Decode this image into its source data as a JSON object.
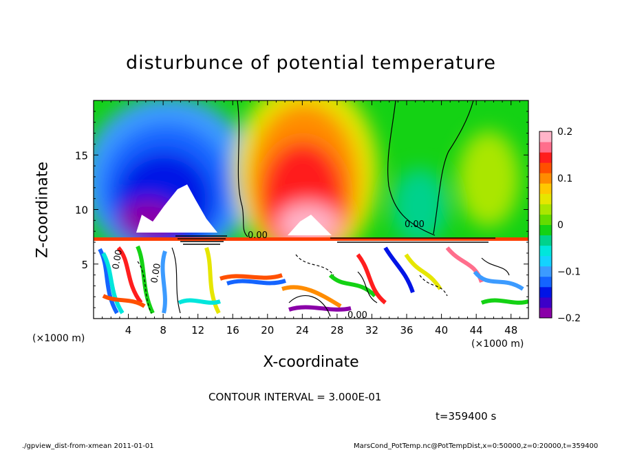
{
  "chart_data": {
    "type": "heatmap",
    "title": "disturbunce of potential temperature",
    "xlabel": "X-coordinate",
    "ylabel": "Z-coordinate",
    "x_unit_label": "(×1000 m)",
    "y_unit_label": "(×1000 m)",
    "xlim": [
      0,
      50
    ],
    "ylim": [
      0,
      20
    ],
    "x_ticks": [
      4,
      8,
      12,
      16,
      20,
      24,
      28,
      32,
      36,
      40,
      44,
      48
    ],
    "y_ticks": [
      5,
      10,
      15
    ],
    "colorbar": {
      "range": [
        -0.2,
        0.2
      ],
      "tick_values": [
        0.2,
        0.1,
        0,
        -0.1,
        -0.2
      ],
      "tick_labels": [
        "0.2",
        "0.1",
        "0",
        "−0.1",
        "−0.2"
      ],
      "colors": [
        "#8a00a8",
        "#3c00c8",
        "#0014e6",
        "#1464ff",
        "#3c9bff",
        "#14d2ff",
        "#00e6dc",
        "#00d28c",
        "#14d214",
        "#64dc00",
        "#aae600",
        "#e6e600",
        "#ffc800",
        "#ff8c00",
        "#ff5000",
        "#ff1e1e",
        "#ff6e8c",
        "#ffb4c8"
      ]
    },
    "contour_labels": [
      "0.00",
      "0.00",
      "0.00",
      "0.00",
      "0.00"
    ],
    "contour_interval": "CONTOUR INTERVAL = 3.000E-01",
    "time_label": "t=359400 s",
    "footer_left": "./gpview_dist-from-xmean  2011-01-01",
    "footer_right": "MarsCond_PotTemp.nc@PotTempDist,x=0:50000,z=0:20000,t=359400"
  }
}
